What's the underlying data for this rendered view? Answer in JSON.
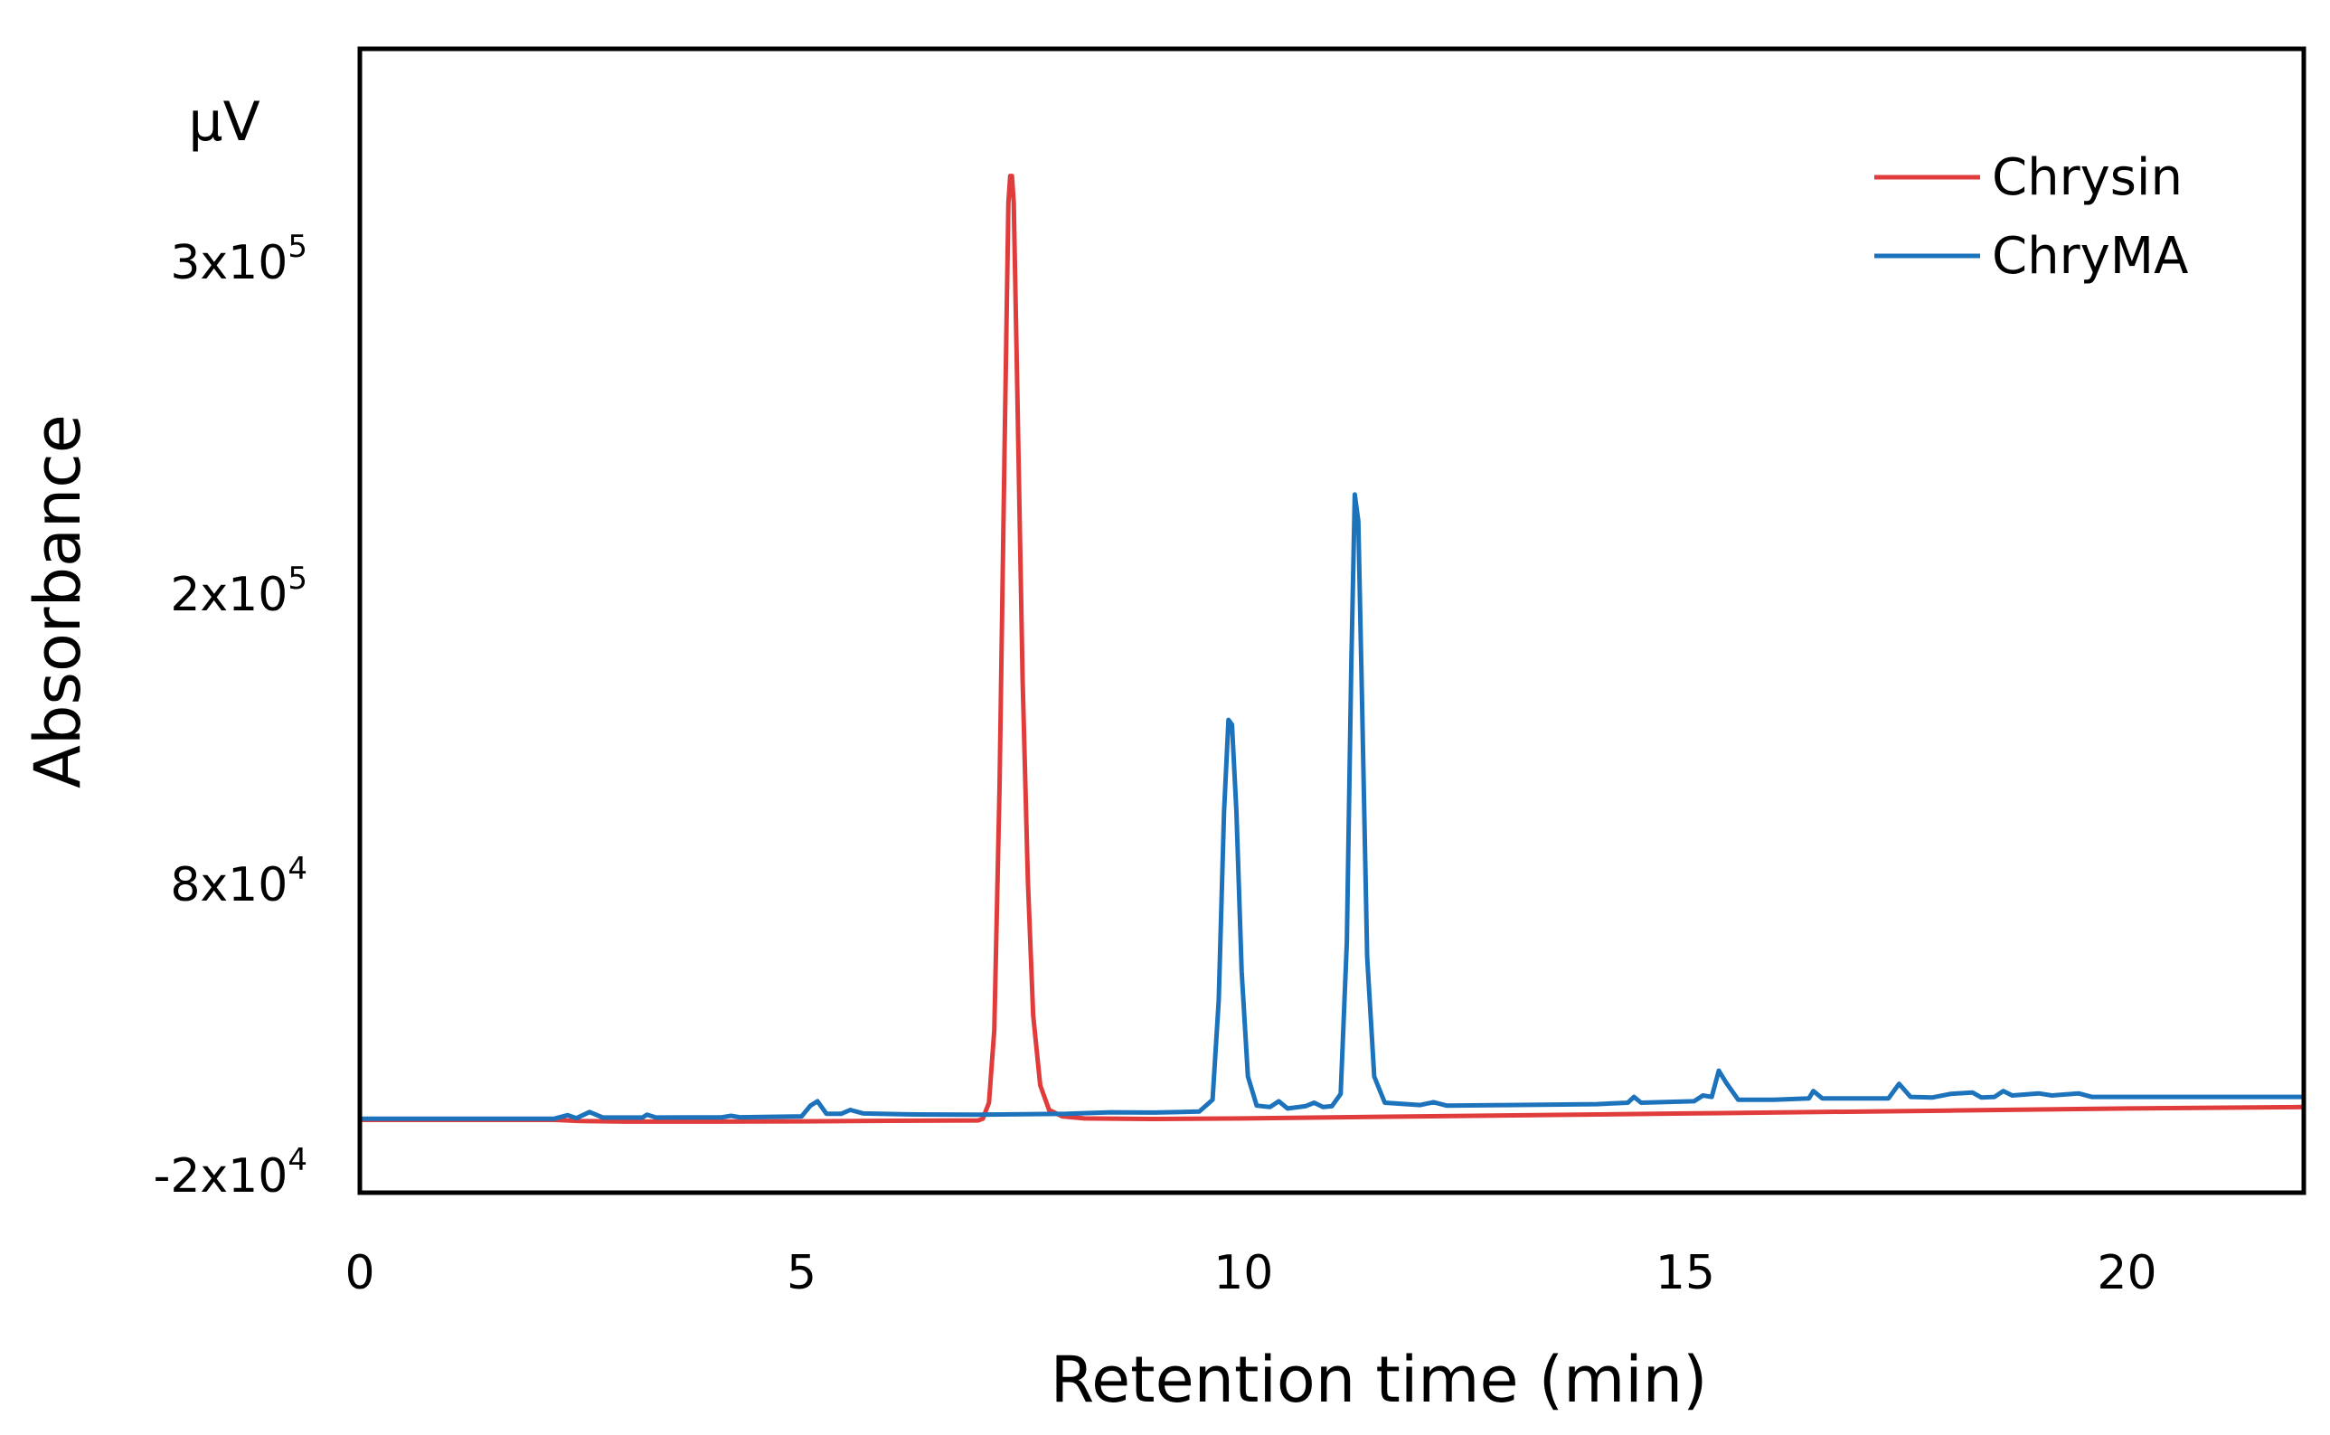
{
  "chart_data": {
    "type": "line",
    "xlabel": "Retention time (min)",
    "ylabel": "Absorbance",
    "y_unit": "µV",
    "xlim": [
      0,
      22
    ],
    "ylim": [
      -25000,
      335000
    ],
    "x_ticks": [
      {
        "value": 0,
        "label": "0"
      },
      {
        "value": 5,
        "label": "5"
      },
      {
        "value": 10,
        "label": "10"
      },
      {
        "value": 15,
        "label": "15"
      },
      {
        "value": 20,
        "label": "20"
      }
    ],
    "y_ticks": [
      {
        "value": -20000,
        "mantissa": "-2x10",
        "exponent": "4"
      },
      {
        "value": 80000,
        "mantissa": "8x10",
        "exponent": "4"
      },
      {
        "value": 200000,
        "mantissa": "2x10",
        "exponent": "5"
      },
      {
        "value": 300000,
        "mantissa": "3x10",
        "exponent": "5"
      }
    ],
    "legend_position": "top-right",
    "grid": false,
    "series": [
      {
        "name": "Chrysin",
        "color": "#e03c3c",
        "points": [
          [
            0,
            -900
          ],
          [
            2.2,
            -900
          ],
          [
            2.5,
            -1300
          ],
          [
            3.0,
            -1500
          ],
          [
            4.0,
            -1500
          ],
          [
            5.0,
            -1400
          ],
          [
            6.0,
            -1200
          ],
          [
            7.0,
            -1100
          ],
          [
            7.05,
            -500
          ],
          [
            7.12,
            5000
          ],
          [
            7.18,
            30000
          ],
          [
            7.24,
            120000
          ],
          [
            7.3,
            250000
          ],
          [
            7.34,
            318000
          ],
          [
            7.36,
            326000
          ],
          [
            7.38,
            326000
          ],
          [
            7.4,
            318000
          ],
          [
            7.44,
            262000
          ],
          [
            7.5,
            165000
          ],
          [
            7.56,
            82000
          ],
          [
            7.62,
            35000
          ],
          [
            7.7,
            11000
          ],
          [
            7.8,
            2500
          ],
          [
            7.95,
            300
          ],
          [
            8.2,
            -400
          ],
          [
            9,
            -600
          ],
          [
            10,
            -400
          ],
          [
            12,
            300
          ],
          [
            15,
            1300
          ],
          [
            18,
            2300
          ],
          [
            20,
            3000
          ],
          [
            22,
            3500
          ]
        ]
      },
      {
        "name": "ChryMA",
        "color": "#1c73bc",
        "points": [
          [
            0,
            -500
          ],
          [
            2.2,
            -500
          ],
          [
            2.35,
            700
          ],
          [
            2.45,
            -300
          ],
          [
            2.6,
            1800
          ],
          [
            2.75,
            -100
          ],
          [
            3.2,
            -100
          ],
          [
            3.25,
            900
          ],
          [
            3.35,
            -100
          ],
          [
            4.1,
            0
          ],
          [
            4.2,
            500
          ],
          [
            4.3,
            0
          ],
          [
            5.0,
            300
          ],
          [
            5.1,
            4000
          ],
          [
            5.18,
            5500
          ],
          [
            5.28,
            1200
          ],
          [
            5.45,
            1200
          ],
          [
            5.55,
            2500
          ],
          [
            5.7,
            1300
          ],
          [
            6.2,
            1000
          ],
          [
            7.0,
            900
          ],
          [
            8.0,
            1200
          ],
          [
            8.5,
            1700
          ],
          [
            9.0,
            1600
          ],
          [
            9.3,
            1800
          ],
          [
            9.5,
            2000
          ],
          [
            9.65,
            6000
          ],
          [
            9.72,
            40000
          ],
          [
            9.78,
            110000
          ],
          [
            9.83,
            148000
          ],
          [
            9.87,
            146000
          ],
          [
            9.92,
            110000
          ],
          [
            9.98,
            50000
          ],
          [
            10.05,
            14000
          ],
          [
            10.15,
            4000
          ],
          [
            10.3,
            3500
          ],
          [
            10.4,
            5500
          ],
          [
            10.5,
            3000
          ],
          [
            10.7,
            3800
          ],
          [
            10.8,
            5000
          ],
          [
            10.9,
            3500
          ],
          [
            11.0,
            3800
          ],
          [
            11.1,
            8000
          ],
          [
            11.17,
            60000
          ],
          [
            11.22,
            170000
          ],
          [
            11.26,
            230000
          ],
          [
            11.3,
            222000
          ],
          [
            11.34,
            160000
          ],
          [
            11.4,
            55000
          ],
          [
            11.48,
            14000
          ],
          [
            11.6,
            5000
          ],
          [
            12.0,
            4200
          ],
          [
            12.15,
            5200
          ],
          [
            12.3,
            4000
          ],
          [
            13.0,
            4200
          ],
          [
            14.0,
            4500
          ],
          [
            14.35,
            5000
          ],
          [
            14.42,
            7000
          ],
          [
            14.5,
            5000
          ],
          [
            15.1,
            5500
          ],
          [
            15.2,
            7500
          ],
          [
            15.3,
            7000
          ],
          [
            15.38,
            16000
          ],
          [
            15.46,
            12000
          ],
          [
            15.6,
            6000
          ],
          [
            16.0,
            6000
          ],
          [
            16.4,
            6500
          ],
          [
            16.45,
            9000
          ],
          [
            16.55,
            6500
          ],
          [
            17.3,
            6500
          ],
          [
            17.42,
            11500
          ],
          [
            17.55,
            7000
          ],
          [
            17.8,
            6800
          ],
          [
            18.0,
            8000
          ],
          [
            18.25,
            8500
          ],
          [
            18.35,
            6800
          ],
          [
            18.5,
            7000
          ],
          [
            18.6,
            9000
          ],
          [
            18.7,
            7500
          ],
          [
            19.0,
            8200
          ],
          [
            19.15,
            7500
          ],
          [
            19.45,
            8200
          ],
          [
            19.6,
            7000
          ],
          [
            20.0,
            7000
          ],
          [
            22,
            7000
          ]
        ]
      }
    ]
  }
}
